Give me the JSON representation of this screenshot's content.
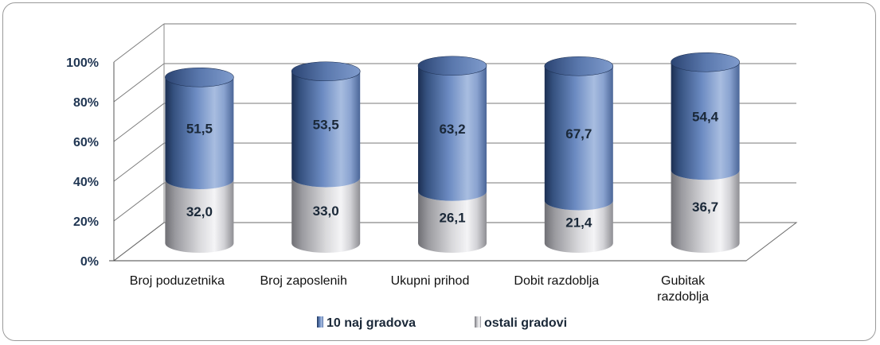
{
  "chart_data": {
    "type": "bar",
    "stacked": true,
    "three_d": "cylinder",
    "percent_scale": true,
    "categories": [
      "Broj poduzetnika",
      "Broj zaposlenih",
      "Ukupni prihod",
      "Dobit razdoblja",
      "Gubitak razdoblja"
    ],
    "category_lines": [
      [
        "Broj poduzetnika"
      ],
      [
        "Broj zaposlenih"
      ],
      [
        "Ukupni prihod"
      ],
      [
        "Dobit razdoblja"
      ],
      [
        "Gubitak",
        "razdoblja"
      ]
    ],
    "series": [
      {
        "name": "ostali gradovi",
        "values": [
          32.0,
          33.0,
          26.1,
          21.4,
          36.7
        ],
        "labels": [
          "32,0",
          "33,0",
          "26,1",
          "21,4",
          "36,7"
        ],
        "color": "#c8c8cc"
      },
      {
        "name": "10 naj gradova",
        "values": [
          51.5,
          53.5,
          63.2,
          67.7,
          54.4
        ],
        "labels": [
          "51,5",
          "53,5",
          "63,2",
          "67,7",
          "54,4"
        ],
        "color": "#6f8ec6"
      }
    ],
    "yticks": [
      "0%",
      "20%",
      "40%",
      "60%",
      "80%",
      "100%"
    ],
    "ylim": [
      0,
      100
    ],
    "grid": true,
    "legend": "bottom"
  }
}
